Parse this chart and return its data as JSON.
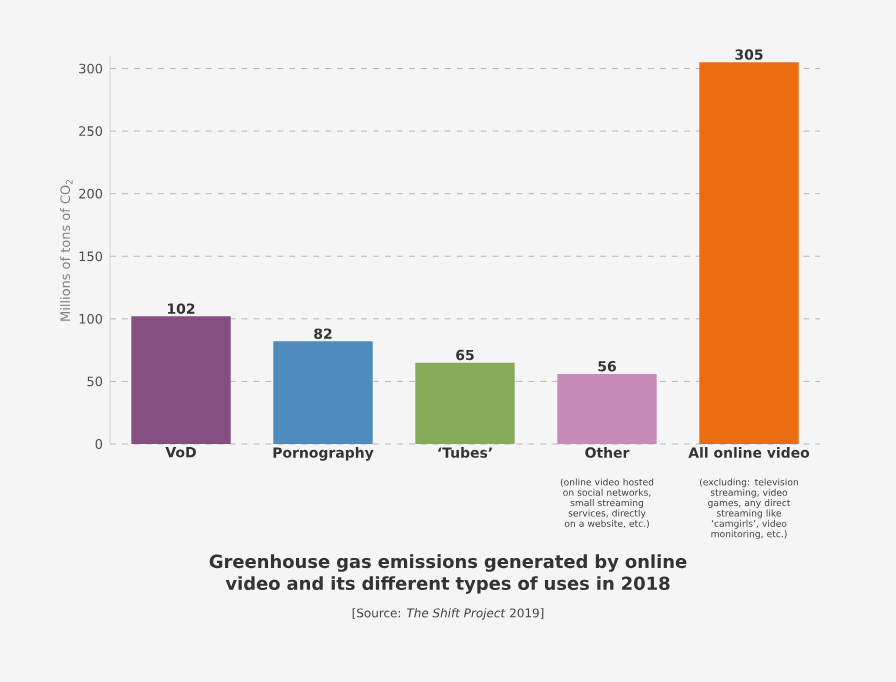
{
  "chart_data": {
    "type": "bar",
    "title": "Greenhouse gas emissions generated by online video and its different types of uses in 2018",
    "ylabel": "Millions of tons of CO$_{2}$",
    "categories": [
      "VoD",
      "Pornography",
      "‘Tubes’",
      "Other",
      "All online video"
    ],
    "values": [
      102,
      82,
      65,
      56,
      305
    ],
    "colors": [
      "#845082",
      "#4f8cbd",
      "#86ab5a",
      "#c88ab9",
      "#ec6c11"
    ],
    "ylim": [
      0,
      310
    ],
    "yticks": [
      0,
      50,
      100,
      150,
      200,
      250,
      300
    ],
    "grid": "y",
    "data_labels": true,
    "annotations": [
      "(online video hosted on social networks, small streaming services, directly on a website, etc.)",
      "(excluding: television streaming, video games, any direct streaming like ‘camgirls’, video monitoring, etc.)",
      "[Source: *The Shift Project* 2019]"
    ]
  }
}
